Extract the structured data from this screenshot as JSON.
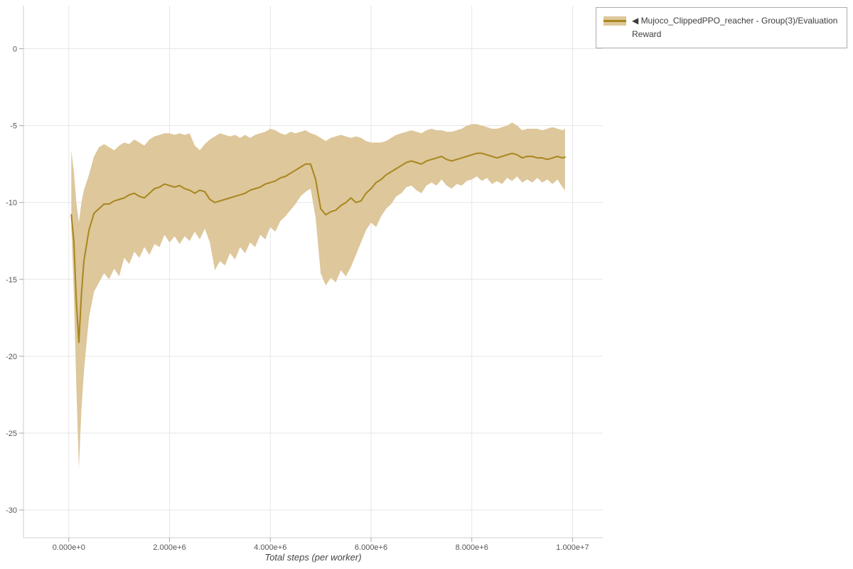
{
  "page": {
    "background": "#ffffff"
  },
  "colors": {
    "grid": "#e6e6e6",
    "axis": "#cfcfcf",
    "tick": "#a6a6a6",
    "tick_label": "#555555",
    "axis_label": "#444444",
    "legend_border": "#ababab",
    "legend_text": "#3c3c3c"
  },
  "legend": {
    "label": "◀ Mujoco_ClippedPPO_reacher - Group(3)/Evaluation Reward"
  },
  "chart_data": {
    "type": "line",
    "title": "",
    "xlabel": "Total steps (per worker)",
    "ylabel": "",
    "grid": true,
    "legend_position": "top-right-outside",
    "xlim": [
      -900000,
      10600000
    ],
    "ylim": [
      -31.8,
      2.8
    ],
    "x_ticks": {
      "values": [
        0,
        2000000,
        4000000,
        6000000,
        8000000,
        10000000
      ],
      "labels": [
        "0.000e+0",
        "2.000e+6",
        "4.000e+6",
        "6.000e+6",
        "8.000e+6",
        "1.000e+7"
      ]
    },
    "y_ticks": {
      "values": [
        0,
        -5,
        -10,
        -15,
        -20,
        -25,
        -30
      ],
      "labels": [
        "0",
        "-5",
        "-10",
        "-15",
        "-20",
        "-25",
        "-30"
      ]
    },
    "series": [
      {
        "name": "◀ Mujoco_ClippedPPO_reacher - Group(3)/Evaluation Reward",
        "color": "#a8861d",
        "band_color": "#ddc79b",
        "x": [
          50000,
          100000,
          150000,
          200000,
          250000,
          300000,
          400000,
          500000,
          600000,
          700000,
          800000,
          900000,
          1000000,
          1100000,
          1200000,
          1300000,
          1400000,
          1500000,
          1600000,
          1700000,
          1800000,
          1900000,
          2000000,
          2100000,
          2200000,
          2300000,
          2400000,
          2500000,
          2600000,
          2700000,
          2800000,
          2900000,
          3000000,
          3100000,
          3200000,
          3300000,
          3400000,
          3500000,
          3600000,
          3700000,
          3800000,
          3900000,
          4000000,
          4100000,
          4200000,
          4300000,
          4400000,
          4500000,
          4600000,
          4700000,
          4800000,
          4900000,
          5000000,
          5100000,
          5200000,
          5300000,
          5400000,
          5500000,
          5600000,
          5700000,
          5800000,
          5900000,
          6000000,
          6100000,
          6200000,
          6300000,
          6400000,
          6500000,
          6600000,
          6700000,
          6800000,
          6900000,
          7000000,
          7100000,
          7200000,
          7300000,
          7400000,
          7500000,
          7600000,
          7700000,
          7800000,
          7900000,
          8000000,
          8100000,
          8200000,
          8300000,
          8400000,
          8500000,
          8600000,
          8700000,
          8800000,
          8900000,
          9000000,
          9100000,
          9200000,
          9300000,
          9400000,
          9500000,
          9600000,
          9700000,
          9800000,
          9850000
        ],
        "mean": [
          -10.8,
          -12.5,
          -16.5,
          -19.1,
          -16.0,
          -13.8,
          -11.8,
          -10.7,
          -10.4,
          -10.1,
          -10.1,
          -9.9,
          -9.8,
          -9.7,
          -9.5,
          -9.4,
          -9.6,
          -9.7,
          -9.4,
          -9.1,
          -9.0,
          -8.8,
          -8.9,
          -9.0,
          -8.9,
          -9.1,
          -9.2,
          -9.4,
          -9.2,
          -9.3,
          -9.8,
          -10.0,
          -9.9,
          -9.8,
          -9.7,
          -9.6,
          -9.5,
          -9.4,
          -9.2,
          -9.1,
          -9.0,
          -8.8,
          -8.7,
          -8.6,
          -8.4,
          -8.3,
          -8.1,
          -7.9,
          -7.7,
          -7.5,
          -7.5,
          -8.5,
          -10.4,
          -10.8,
          -10.6,
          -10.5,
          -10.2,
          -10.0,
          -9.7,
          -10.0,
          -9.9,
          -9.4,
          -9.1,
          -8.7,
          -8.5,
          -8.2,
          -8.0,
          -7.8,
          -7.6,
          -7.4,
          -7.3,
          -7.4,
          -7.5,
          -7.3,
          -7.2,
          -7.1,
          -7.0,
          -7.2,
          -7.3,
          -7.2,
          -7.1,
          -7.0,
          -6.9,
          -6.8,
          -6.8,
          -6.9,
          -7.0,
          -7.1,
          -7.0,
          -6.9,
          -6.8,
          -6.9,
          -7.1,
          -7.0,
          -7.0,
          -7.1,
          -7.1,
          -7.2,
          -7.1,
          -7.0,
          -7.1,
          -7.05
        ],
        "lower": [
          -11.6,
          -16.0,
          -22.0,
          -27.3,
          -23.5,
          -21.0,
          -17.5,
          -15.8,
          -15.2,
          -14.6,
          -15.0,
          -14.3,
          -14.8,
          -13.6,
          -14.0,
          -13.2,
          -13.6,
          -12.9,
          -13.4,
          -12.7,
          -12.9,
          -12.1,
          -12.6,
          -12.2,
          -12.7,
          -12.2,
          -12.5,
          -11.9,
          -12.4,
          -11.7,
          -12.6,
          -14.4,
          -13.8,
          -14.1,
          -13.3,
          -13.7,
          -12.9,
          -13.3,
          -12.6,
          -12.9,
          -12.1,
          -12.4,
          -11.6,
          -11.9,
          -11.2,
          -10.9,
          -10.5,
          -10.1,
          -9.6,
          -9.3,
          -9.1,
          -11.0,
          -14.6,
          -15.4,
          -14.9,
          -15.2,
          -14.4,
          -14.8,
          -14.2,
          -13.4,
          -12.6,
          -11.8,
          -11.3,
          -11.6,
          -10.9,
          -10.4,
          -10.1,
          -9.6,
          -9.4,
          -9.0,
          -8.9,
          -9.2,
          -9.4,
          -8.9,
          -8.7,
          -8.9,
          -8.5,
          -8.9,
          -9.1,
          -8.8,
          -8.9,
          -8.6,
          -8.5,
          -8.3,
          -8.6,
          -8.4,
          -8.8,
          -8.6,
          -8.8,
          -8.4,
          -8.6,
          -8.3,
          -8.7,
          -8.5,
          -8.7,
          -8.4,
          -8.7,
          -8.5,
          -8.8,
          -8.5,
          -9.0,
          -9.2
        ],
        "upper": [
          -6.6,
          -8.0,
          -10.0,
          -11.3,
          -10.0,
          -9.2,
          -8.2,
          -7.0,
          -6.4,
          -6.2,
          -6.4,
          -6.6,
          -6.3,
          -6.1,
          -6.2,
          -5.9,
          -6.1,
          -6.3,
          -5.9,
          -5.7,
          -5.6,
          -5.5,
          -5.5,
          -5.6,
          -5.5,
          -5.6,
          -5.5,
          -6.3,
          -6.6,
          -6.2,
          -5.9,
          -5.7,
          -5.5,
          -5.6,
          -5.7,
          -5.6,
          -5.8,
          -5.6,
          -5.8,
          -5.6,
          -5.5,
          -5.4,
          -5.2,
          -5.3,
          -5.5,
          -5.6,
          -5.4,
          -5.5,
          -5.4,
          -5.3,
          -5.5,
          -5.6,
          -5.8,
          -6.0,
          -5.8,
          -5.7,
          -5.6,
          -5.7,
          -5.8,
          -5.7,
          -5.8,
          -6.0,
          -6.1,
          -6.1,
          -6.1,
          -6.0,
          -5.8,
          -5.6,
          -5.5,
          -5.4,
          -5.3,
          -5.4,
          -5.5,
          -5.3,
          -5.2,
          -5.3,
          -5.3,
          -5.4,
          -5.4,
          -5.3,
          -5.2,
          -5.0,
          -4.9,
          -4.9,
          -5.0,
          -5.1,
          -5.2,
          -5.2,
          -5.1,
          -5.0,
          -4.8,
          -5.0,
          -5.3,
          -5.2,
          -5.2,
          -5.2,
          -5.3,
          -5.2,
          -5.1,
          -5.2,
          -5.3,
          -5.2
        ]
      }
    ]
  }
}
